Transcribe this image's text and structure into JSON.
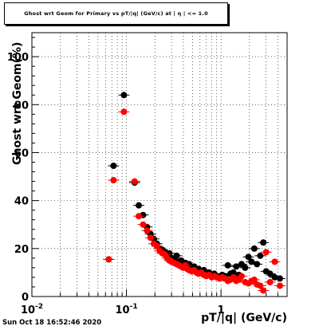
{
  "title": "Ghost wrt Geom for Primary vs pT/|q| (GeV/c) at | η | <= 1.0",
  "footer": "Sun Oct 18 16:52:46 2020",
  "chart_data": {
    "type": "scatter",
    "title": "Ghost wrt Geom for Primary vs pT/|q| (GeV/c) at | η | <= 1.0",
    "xlabel": "pT/|q| (GeV/c)",
    "ylabel": "Ghost wrt Geom(%)",
    "xscale": "log",
    "xlim": [
      0.01,
      5.0
    ],
    "ylim": [
      0,
      110
    ],
    "x_ticks": [
      {
        "v": 0.01,
        "base": "10",
        "exp": "-2"
      },
      {
        "v": 0.1,
        "base": "10",
        "exp": "-1"
      },
      {
        "v": 1,
        "base": "1",
        "exp": ""
      }
    ],
    "y_ticks": [
      0,
      20,
      40,
      60,
      80,
      100
    ],
    "grid": true,
    "series": [
      {
        "color": "#000000",
        "x": [
          0.065,
          0.073,
          0.094,
          0.122,
          0.135,
          0.15,
          0.165,
          0.18,
          0.195,
          0.21,
          0.225,
          0.24,
          0.255,
          0.27,
          0.285,
          0.3,
          0.32,
          0.34,
          0.36,
          0.38,
          0.4,
          0.42,
          0.44,
          0.46,
          0.49,
          0.52,
          0.55,
          0.58,
          0.62,
          0.66,
          0.7,
          0.75,
          0.8,
          0.85,
          0.9,
          0.96,
          1.03,
          1.1,
          1.18,
          1.26,
          1.35,
          1.45,
          1.55,
          1.65,
          1.8,
          1.95,
          2.1,
          2.25,
          2.4,
          2.6,
          2.8,
          3.0,
          3.3,
          3.7,
          4.2
        ],
        "y": [
          15.5,
          54.5,
          84.0,
          47.5,
          38.0,
          34.0,
          29.0,
          26.0,
          24.0,
          22.0,
          20.0,
          19.5,
          18.5,
          17.0,
          18.0,
          16.0,
          15.5,
          17.0,
          14.5,
          15.0,
          13.0,
          14.0,
          12.0,
          13.5,
          11.0,
          12.5,
          10.5,
          11.5,
          10.0,
          11.0,
          9.5,
          10.0,
          9.0,
          9.5,
          8.5,
          8.0,
          9.0,
          8.5,
          13.0,
          9.5,
          10.0,
          12.5,
          9.0,
          13.5,
          12.0,
          16.5,
          14.5,
          20.0,
          13.5,
          17.0,
          22.5,
          10.5,
          9.5,
          8.0,
          7.5
        ]
      },
      {
        "color": "#ff0000",
        "x": [
          0.065,
          0.073,
          0.094,
          0.122,
          0.135,
          0.15,
          0.165,
          0.18,
          0.195,
          0.21,
          0.225,
          0.24,
          0.255,
          0.27,
          0.285,
          0.3,
          0.32,
          0.34,
          0.36,
          0.38,
          0.4,
          0.42,
          0.44,
          0.46,
          0.49,
          0.52,
          0.55,
          0.58,
          0.62,
          0.66,
          0.7,
          0.75,
          0.8,
          0.85,
          0.9,
          0.96,
          1.03,
          1.1,
          1.18,
          1.26,
          1.35,
          1.45,
          1.55,
          1.65,
          1.8,
          1.95,
          2.1,
          2.25,
          2.4,
          2.6,
          2.8,
          3.0,
          3.3,
          3.7,
          4.2
        ],
        "y": [
          15.5,
          48.5,
          77.0,
          48.0,
          33.5,
          30.0,
          27.5,
          24.5,
          22.0,
          21.0,
          19.0,
          18.0,
          17.5,
          16.0,
          15.0,
          14.5,
          14.0,
          13.5,
          13.0,
          12.5,
          12.0,
          13.0,
          11.5,
          11.0,
          10.5,
          11.0,
          10.0,
          9.5,
          10.0,
          9.0,
          8.5,
          9.0,
          8.0,
          8.5,
          8.0,
          7.5,
          8.0,
          7.5,
          6.5,
          7.0,
          8.0,
          6.5,
          7.0,
          8.5,
          6.0,
          5.5,
          6.5,
          7.0,
          5.0,
          4.5,
          2.5,
          18.5,
          6.0,
          14.5,
          4.5
        ]
      }
    ]
  }
}
